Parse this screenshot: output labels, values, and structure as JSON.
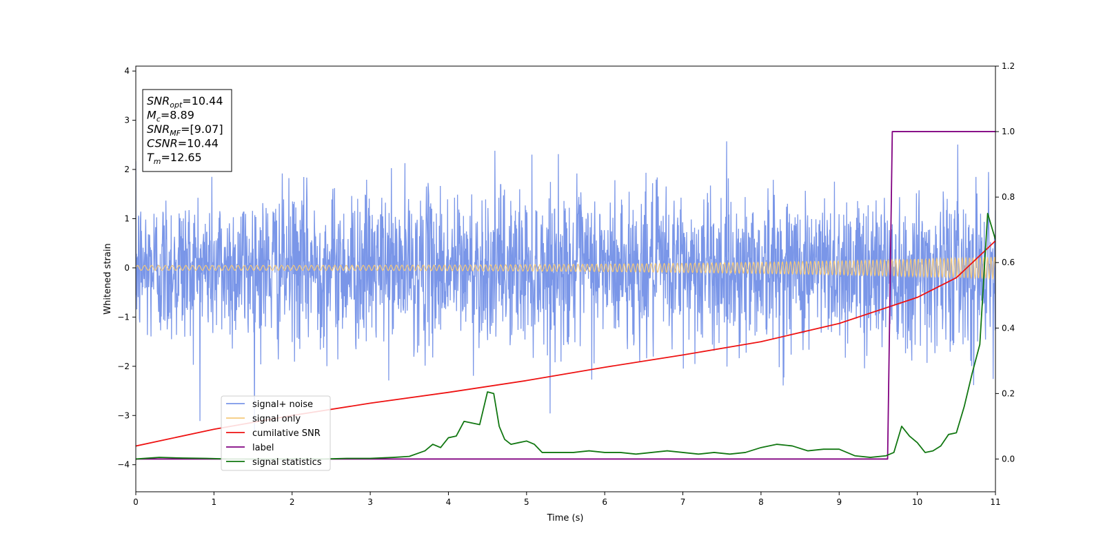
{
  "chart_data": {
    "type": "line",
    "xlabel": "Time (s)",
    "ylabel": "Whitened strain",
    "xlim": [
      0,
      11
    ],
    "ylim": [
      -4.55,
      4.1
    ],
    "y2lim": [
      -0.1,
      1.2
    ],
    "xticks": [
      0,
      1,
      2,
      3,
      4,
      5,
      6,
      7,
      8,
      9,
      10,
      11
    ],
    "yticks": [
      -4,
      -3,
      -2,
      -1,
      0,
      1,
      2,
      3,
      4
    ],
    "y2ticks": [
      0.0,
      0.2,
      0.4,
      0.6,
      0.8,
      1.0,
      1.2
    ],
    "y2tick_labels": [
      "0.0",
      "0.2",
      "0.4",
      "0.6",
      "0.8",
      "1.0",
      "1.2"
    ],
    "grid": false,
    "legend_position": "lower-left",
    "series": [
      {
        "name": "signal+ noise",
        "axis": "left",
        "color": "#7a96e8",
        "note_kind": "noise",
        "noise_std": 0.78,
        "amplitude_start": 0.05,
        "amplitude_end": 0.22
      },
      {
        "name": "signal only",
        "axis": "left",
        "color": "#f5c97a",
        "note_kind": "chirp",
        "amplitude_start": 0.05,
        "amplitude_end": 0.22,
        "frequency_start": 11,
        "frequency_end": 22
      },
      {
        "name": "cumilative SNR",
        "axis": "left",
        "color": "#ee1111",
        "x": [
          0,
          1,
          2,
          3,
          4,
          5,
          6,
          7,
          8,
          9,
          10,
          10.5,
          11
        ],
        "y": [
          -3.62,
          -3.28,
          -3.0,
          -2.75,
          -2.53,
          -2.29,
          -2.02,
          -1.77,
          -1.5,
          -1.13,
          -0.6,
          -0.2,
          0.55
        ]
      },
      {
        "name": "label",
        "axis": "right",
        "color": "#800080",
        "x": [
          0,
          9.62,
          9.68,
          11
        ],
        "y": [
          0,
          0,
          1,
          1
        ]
      },
      {
        "name": "signal statistics",
        "axis": "right",
        "color": "#117711",
        "x": [
          0,
          0.3,
          0.6,
          0.9,
          1.2,
          1.5,
          1.8,
          2.1,
          2.4,
          2.7,
          3.0,
          3.3,
          3.5,
          3.7,
          3.8,
          3.9,
          4.0,
          4.1,
          4.2,
          4.3,
          4.4,
          4.5,
          4.58,
          4.65,
          4.72,
          4.8,
          4.9,
          5.0,
          5.1,
          5.2,
          5.4,
          5.6,
          5.8,
          6.0,
          6.2,
          6.4,
          6.6,
          6.8,
          7.0,
          7.2,
          7.4,
          7.6,
          7.8,
          8.0,
          8.2,
          8.4,
          8.6,
          8.8,
          9.0,
          9.2,
          9.4,
          9.6,
          9.7,
          9.8,
          9.9,
          10.0,
          10.1,
          10.2,
          10.3,
          10.4,
          10.5,
          10.6,
          10.7,
          10.8,
          10.9,
          11.0
        ],
        "y": [
          0.0,
          0.005,
          0.003,
          0.002,
          0.0,
          0.0,
          0.0,
          0.001,
          0.0,
          0.002,
          0.002,
          0.005,
          0.008,
          0.025,
          0.045,
          0.035,
          0.065,
          0.07,
          0.115,
          0.11,
          0.105,
          0.205,
          0.2,
          0.1,
          0.06,
          0.045,
          0.05,
          0.055,
          0.045,
          0.02,
          0.02,
          0.02,
          0.025,
          0.02,
          0.02,
          0.015,
          0.02,
          0.025,
          0.02,
          0.015,
          0.02,
          0.015,
          0.02,
          0.035,
          0.045,
          0.04,
          0.025,
          0.03,
          0.03,
          0.01,
          0.005,
          0.01,
          0.02,
          0.1,
          0.07,
          0.05,
          0.02,
          0.025,
          0.04,
          0.075,
          0.08,
          0.16,
          0.26,
          0.35,
          0.75,
          0.67
        ]
      }
    ],
    "annotations": [
      {
        "base": "SNR",
        "sub": "opt",
        "value": "=10.44"
      },
      {
        "base": "M",
        "sub": "c",
        "value": "=8.89"
      },
      {
        "base": "SNR",
        "sub": "MF",
        "value": "=[9.07]"
      },
      {
        "base": "CSNR",
        "sub": "",
        "value": "=10.44"
      },
      {
        "base": "T",
        "sub": "m",
        "value": "=12.65"
      }
    ]
  }
}
